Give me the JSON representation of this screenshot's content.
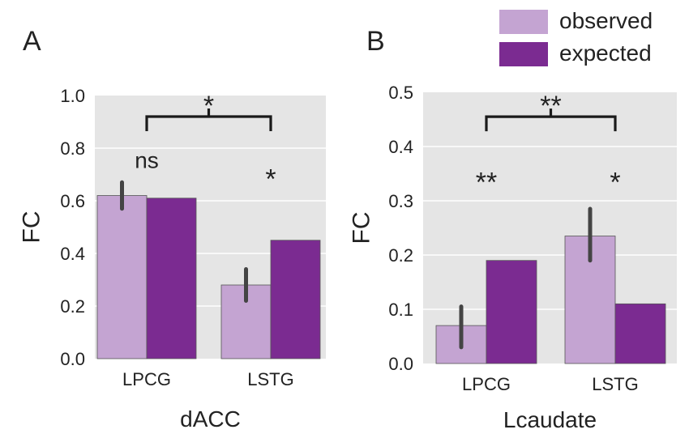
{
  "legend": {
    "items": [
      {
        "label": "observed",
        "color": "#c4a4d2"
      },
      {
        "label": "expected",
        "color": "#7b2b91"
      }
    ]
  },
  "chart_data": [
    {
      "panel_label": "A",
      "type": "bar",
      "title": "",
      "xlabel": "dACC",
      "ylabel": "FC",
      "ylim": [
        0,
        1.0
      ],
      "yticks": [
        "0.0",
        "0.2",
        "0.4",
        "0.6",
        "0.8",
        "1.0"
      ],
      "grid": true,
      "categories": [
        "LPCG",
        "LSTG"
      ],
      "series": [
        {
          "name": "observed",
          "values": [
            0.62,
            0.28
          ],
          "error": [
            [
              0.57,
              0.67
            ],
            [
              0.22,
              0.34
            ]
          ]
        },
        {
          "name": "expected",
          "values": [
            0.61,
            0.45
          ]
        }
      ],
      "annotations": [
        {
          "text": "ns",
          "category": 0,
          "value": 0.725
        },
        {
          "text": "*",
          "category": 1,
          "value": 0.685
        },
        {
          "text": "*",
          "bracket": true,
          "value": 0.92
        }
      ]
    },
    {
      "panel_label": "B",
      "type": "bar",
      "title": "",
      "xlabel": "Lcaudate",
      "ylabel": "FC",
      "ylim": [
        0,
        0.5
      ],
      "yticks": [
        "0.0",
        "0.1",
        "0.2",
        "0.3",
        "0.4",
        "0.5"
      ],
      "grid": true,
      "categories": [
        "LPCG",
        "LSTG"
      ],
      "series": [
        {
          "name": "observed",
          "values": [
            0.07,
            0.235
          ],
          "error": [
            [
              0.03,
              0.105
            ],
            [
              0.19,
              0.285
            ]
          ]
        },
        {
          "name": "expected",
          "values": [
            0.19,
            0.11
          ]
        }
      ],
      "annotations": [
        {
          "text": "**",
          "category": 0,
          "value": 0.335
        },
        {
          "text": "*",
          "category": 1,
          "value": 0.335
        },
        {
          "text": "**",
          "bracket": true,
          "value": 0.455
        }
      ]
    }
  ]
}
